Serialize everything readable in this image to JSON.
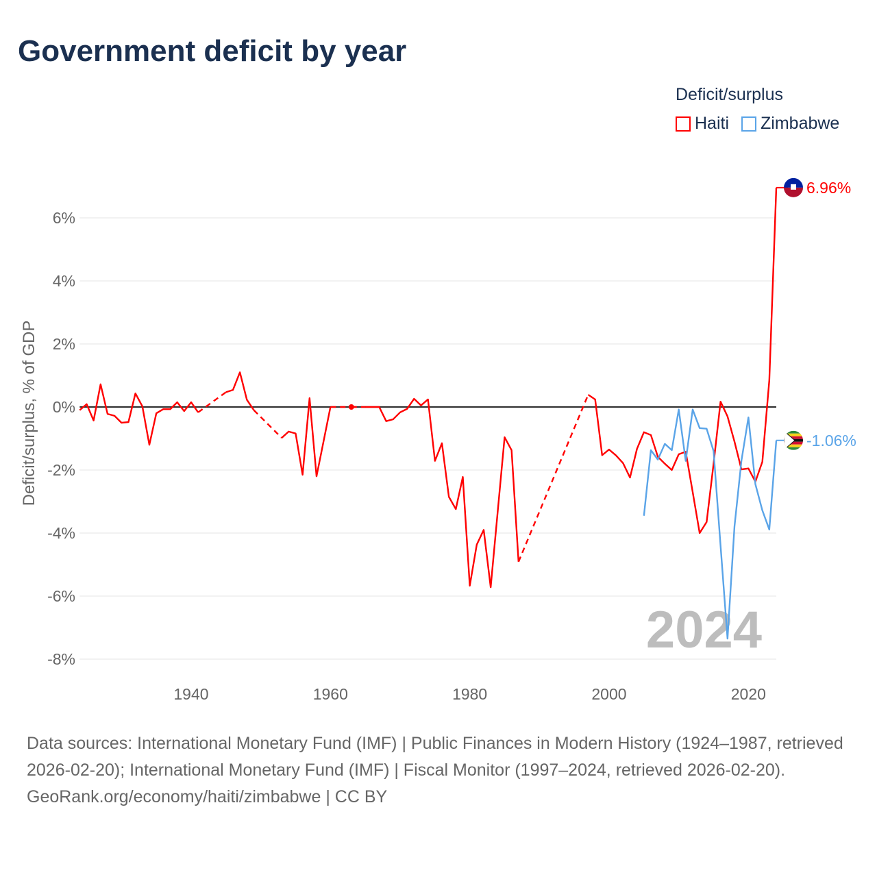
{
  "title": "Government deficit by year",
  "legend": {
    "title": "Deficit/surplus",
    "items": [
      {
        "name": "Haiti",
        "color": "#ff0000"
      },
      {
        "name": "Zimbabwe",
        "color": "#5aa4e8"
      }
    ]
  },
  "watermark_year": "2024",
  "footer": {
    "sources": "Data sources: International Monetary Fund (IMF) | Public Finances in Modern History (1924–1987, retrieved 2026-02-20); International Monetary Fund (IMF) | Fiscal Monitor (1997–2024, retrieved 2026-02-20).",
    "credit": "GeoRank.org/economy/haiti/zimbabwe | CC BY"
  },
  "chart_data": {
    "type": "line",
    "title": "Government deficit by year",
    "xlabel": "",
    "ylabel": "Deficit/surplus, % of GDP",
    "xlim": [
      1924,
      2024
    ],
    "ylim": [
      -8.4,
      7.3
    ],
    "x_ticks": [
      {
        "value": 1940,
        "label": "1940"
      },
      {
        "value": 1960,
        "label": "1960"
      },
      {
        "value": 1980,
        "label": "1980"
      },
      {
        "value": 2000,
        "label": "2000"
      },
      {
        "value": 2020,
        "label": "2020"
      }
    ],
    "y_ticks": [
      {
        "value": 6,
        "label": "6%"
      },
      {
        "value": 4,
        "label": "4%"
      },
      {
        "value": 2,
        "label": "2%"
      },
      {
        "value": 0,
        "label": "0%"
      },
      {
        "value": -2,
        "label": "-2%"
      },
      {
        "value": -4,
        "label": "-4%"
      },
      {
        "value": -6,
        "label": "-6%"
      },
      {
        "value": -8,
        "label": "-8%"
      }
    ],
    "grid": true,
    "legend_position": "top-right",
    "series": [
      {
        "name": "Haiti",
        "color": "#ff0000",
        "end_label": "6.96%",
        "points": [
          [
            1924,
            -0.1
          ],
          [
            1925,
            0.09
          ],
          [
            1926,
            -0.43
          ],
          [
            1927,
            0.72
          ],
          [
            1928,
            -0.22
          ],
          [
            1929,
            -0.28
          ],
          [
            1930,
            -0.5
          ],
          [
            1931,
            -0.48
          ],
          [
            1932,
            0.43
          ],
          [
            1933,
            0.02
          ],
          [
            1934,
            -1.2
          ],
          [
            1935,
            -0.2
          ],
          [
            1936,
            -0.07
          ],
          [
            1937,
            -0.07
          ],
          [
            1938,
            0.15
          ],
          [
            1939,
            -0.13
          ],
          [
            1940,
            0.15
          ],
          [
            1941,
            -0.17
          ],
          [
            1945,
            0.47
          ],
          [
            1946,
            0.54
          ],
          [
            1947,
            1.1
          ],
          [
            1948,
            0.23
          ],
          [
            1949,
            -0.1
          ],
          [
            1953,
            -0.98
          ],
          [
            1954,
            -0.78
          ],
          [
            1955,
            -0.84
          ],
          [
            1956,
            -2.15
          ],
          [
            1957,
            0.28
          ],
          [
            1958,
            -2.2
          ],
          [
            1959,
            -1.1
          ],
          [
            1960,
            0.0
          ],
          [
            1963,
            0.0
          ],
          [
            1965,
            0.0
          ],
          [
            1966,
            0.0
          ],
          [
            1967,
            0.0
          ],
          [
            1968,
            -0.45
          ],
          [
            1969,
            -0.39
          ],
          [
            1970,
            -0.17
          ],
          [
            1971,
            -0.06
          ],
          [
            1972,
            0.26
          ],
          [
            1973,
            0.05
          ],
          [
            1974,
            0.24
          ],
          [
            1975,
            -1.71
          ],
          [
            1976,
            -1.15
          ],
          [
            1977,
            -2.85
          ],
          [
            1978,
            -3.24
          ],
          [
            1979,
            -2.22
          ],
          [
            1980,
            -5.67
          ],
          [
            1981,
            -4.37
          ],
          [
            1982,
            -3.9
          ],
          [
            1983,
            -5.72
          ],
          [
            1984,
            -3.34
          ],
          [
            1985,
            -0.96
          ],
          [
            1986,
            -1.37
          ],
          [
            1987,
            -4.91
          ],
          [
            1997,
            0.39
          ],
          [
            1998,
            0.24
          ],
          [
            1999,
            -1.53
          ],
          [
            2000,
            -1.35
          ],
          [
            2001,
            -1.54
          ],
          [
            2002,
            -1.78
          ],
          [
            2003,
            -2.24
          ],
          [
            2004,
            -1.33
          ],
          [
            2005,
            -0.8
          ],
          [
            2006,
            -0.89
          ],
          [
            2007,
            -1.58
          ],
          [
            2008,
            -1.8
          ],
          [
            2009,
            -2.0
          ],
          [
            2010,
            -1.5
          ],
          [
            2011,
            -1.42
          ],
          [
            2012,
            -2.7
          ],
          [
            2013,
            -4.0
          ],
          [
            2014,
            -3.65
          ],
          [
            2015,
            -1.8
          ],
          [
            2016,
            0.17
          ],
          [
            2017,
            -0.3
          ],
          [
            2018,
            -1.1
          ],
          [
            2019,
            -1.98
          ],
          [
            2020,
            -1.95
          ],
          [
            2021,
            -2.37
          ],
          [
            2022,
            -1.74
          ],
          [
            2023,
            0.85
          ],
          [
            2024,
            6.96
          ]
        ]
      },
      {
        "name": "Zimbabwe",
        "color": "#5aa4e8",
        "end_label": "-1.06%",
        "points": [
          [
            2005,
            -3.45
          ],
          [
            2006,
            -1.37
          ],
          [
            2007,
            -1.67
          ],
          [
            2008,
            -1.17
          ],
          [
            2009,
            -1.37
          ],
          [
            2010,
            -0.08
          ],
          [
            2011,
            -1.71
          ],
          [
            2012,
            -0.08
          ],
          [
            2013,
            -0.67
          ],
          [
            2014,
            -0.69
          ],
          [
            2015,
            -1.4
          ],
          [
            2016,
            -4.4
          ],
          [
            2017,
            -7.35
          ],
          [
            2018,
            -3.79
          ],
          [
            2019,
            -1.7
          ],
          [
            2020,
            -0.33
          ],
          [
            2021,
            -2.45
          ],
          [
            2022,
            -3.28
          ],
          [
            2023,
            -3.89
          ],
          [
            2024,
            -1.06
          ]
        ]
      }
    ]
  }
}
